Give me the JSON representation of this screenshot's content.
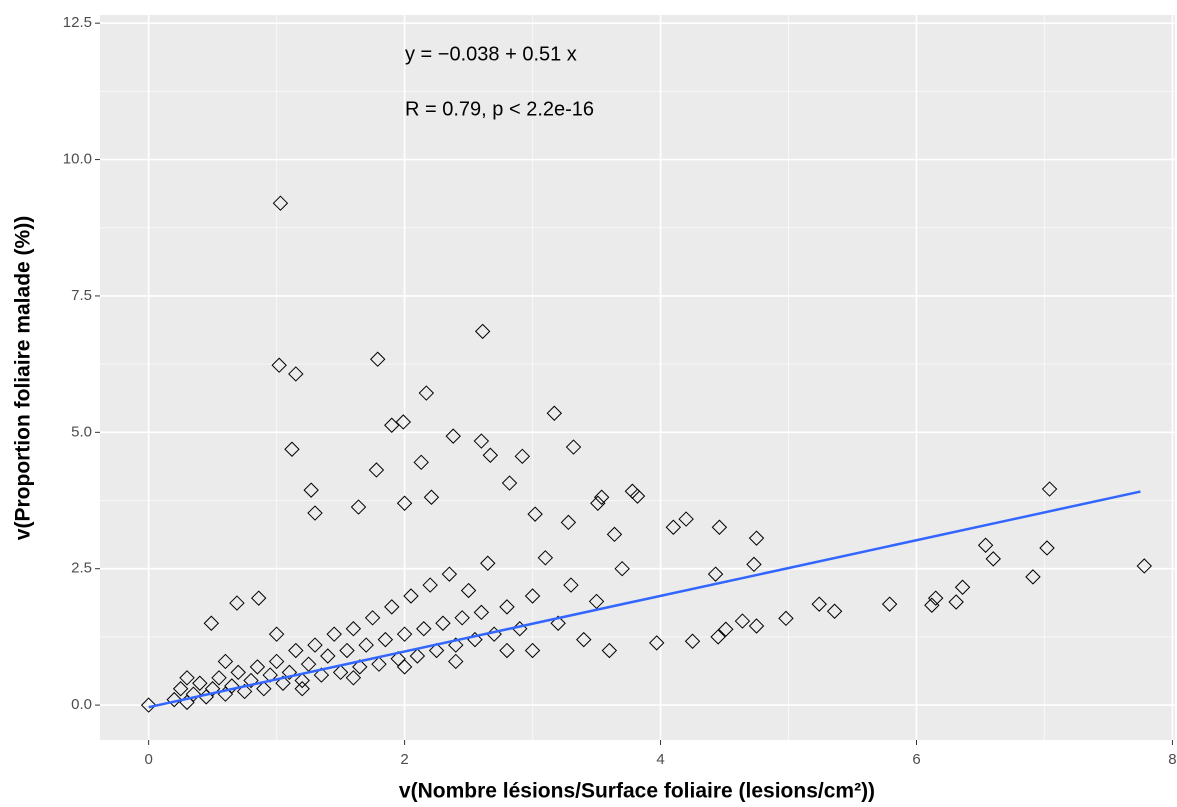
{
  "chart_data": {
    "type": "scatter",
    "x_label": "v(Nombre lésions/Surface foliaire (lesions/cm²))",
    "y_label": "v(Proportion foliaire malade (%))",
    "annotations": [
      "y = −0.038 + 0.51 x",
      "R = 0.79, p < 2.2e-16"
    ],
    "xlim": [
      -0.38,
      8.02
    ],
    "ylim": [
      -0.64,
      12.65
    ],
    "xticks": [
      0,
      2,
      4,
      6,
      8
    ],
    "yticks": [
      {
        "value": 0,
        "label": "0.0"
      },
      {
        "value": 2.5,
        "label": "2.5"
      },
      {
        "value": 5,
        "label": "5.0"
      },
      {
        "value": 7.5,
        "label": "7.5"
      },
      {
        "value": 10,
        "label": "10.0"
      },
      {
        "value": 12.5,
        "label": "12.5"
      }
    ],
    "grid": true,
    "series": [
      {
        "color": "#000000",
        "marker": "diamond",
        "x": [
          1.03,
          1.02,
          1.15,
          2.61,
          1.79,
          2.17,
          1.12,
          1.78,
          1.9,
          1.99,
          2.38,
          2.6,
          3.17,
          3.32,
          2.13,
          2.92,
          1.27,
          1.3,
          1.64,
          2.0,
          2.21,
          7.04,
          7.02,
          7.78,
          6.91,
          6.54,
          6.6,
          5.79,
          6.12,
          6.15,
          6.31,
          6.36,
          5.24,
          5.36,
          4.98,
          4.73,
          4.75,
          4.46,
          4.2,
          4.1,
          4.43,
          4.64,
          4.75,
          4.51,
          4.45,
          4.25,
          3.97,
          0.49,
          0.69,
          0.86,
          0,
          3.78,
          3.82,
          3.54,
          3.51,
          2.82,
          2.67,
          3.28,
          3.02,
          3.64,
          0.2,
          0.25,
          0.3,
          0.35,
          0.4,
          0.45,
          0.5,
          0.55,
          0.6,
          0.65,
          0.7,
          0.75,
          0.8,
          0.85,
          0.9,
          0.95,
          1.0,
          1.05,
          1.1,
          1.15,
          1.2,
          1.25,
          1.3,
          1.35,
          1.4,
          1.45,
          1.5,
          1.55,
          1.6,
          1.65,
          1.7,
          1.75,
          1.8,
          1.85,
          1.9,
          1.95,
          2.0,
          2.05,
          2.1,
          2.15,
          2.2,
          2.25,
          2.3,
          2.35,
          2.4,
          2.45,
          2.5,
          2.55,
          2.6,
          2.65,
          2.7,
          2.8,
          2.9,
          3.0,
          3.0,
          3.1,
          3.2,
          3.3,
          3.4,
          3.5,
          3.6,
          3.7,
          1.2,
          1.6,
          2.0,
          2.4,
          2.8,
          0.3,
          0.6,
          1.0
        ],
        "y": [
          9.2,
          6.23,
          6.07,
          6.85,
          6.34,
          5.72,
          4.69,
          4.31,
          5.13,
          5.19,
          4.93,
          4.84,
          5.35,
          4.73,
          4.45,
          4.56,
          3.94,
          3.52,
          3.63,
          3.7,
          3.81,
          3.96,
          2.88,
          2.55,
          2.35,
          2.93,
          2.68,
          1.85,
          1.83,
          1.96,
          1.89,
          2.16,
          1.85,
          1.72,
          1.59,
          2.58,
          3.06,
          3.26,
          3.41,
          3.26,
          2.4,
          1.54,
          1.45,
          1.39,
          1.25,
          1.17,
          1.14,
          1.5,
          1.87,
          1.96,
          0,
          3.92,
          3.83,
          3.81,
          3.7,
          4.07,
          4.58,
          3.35,
          3.5,
          3.13,
          0.1,
          0.3,
          0.05,
          0.2,
          0.4,
          0.15,
          0.3,
          0.5,
          0.2,
          0.35,
          0.6,
          0.25,
          0.45,
          0.7,
          0.3,
          0.55,
          0.8,
          0.4,
          0.6,
          1.0,
          0.45,
          0.75,
          1.1,
          0.55,
          0.9,
          1.3,
          0.6,
          1.0,
          1.4,
          0.7,
          1.1,
          1.6,
          0.75,
          1.2,
          1.8,
          0.85,
          1.3,
          2.0,
          0.9,
          1.4,
          2.2,
          1.0,
          1.5,
          2.4,
          1.1,
          1.6,
          2.1,
          1.2,
          1.7,
          2.6,
          1.3,
          1.8,
          1.4,
          2.0,
          1.0,
          2.7,
          1.5,
          2.2,
          1.2,
          1.9,
          1.0,
          2.5,
          0.3,
          0.5,
          0.7,
          0.8,
          1.0,
          0.5,
          0.8,
          1.3
        ]
      }
    ],
    "fit": {
      "intercept": -0.038,
      "slope": 0.51,
      "x": [
        0,
        7.75
      ],
      "color": "#3366ff"
    }
  }
}
